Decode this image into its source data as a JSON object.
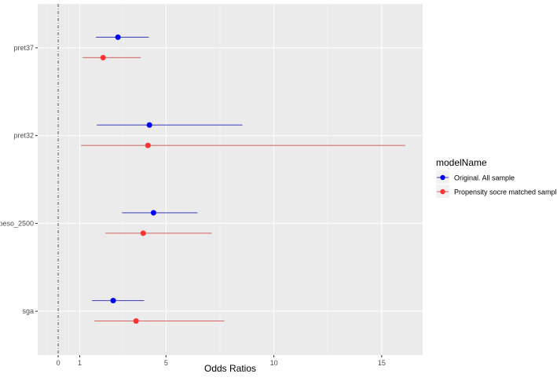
{
  "chart_data": {
    "type": "forest",
    "xlabel": "Odds Ratios",
    "ylabel": "",
    "xlim": [
      -0.95,
      16.9
    ],
    "x_ticks": [
      0,
      1,
      5,
      10,
      15
    ],
    "x_tick_labels": [
      "0",
      "1",
      "5",
      "10",
      "15"
    ],
    "x_minor_grid": [
      -0.5,
      0.5,
      3,
      7.5,
      12.5
    ],
    "reference_line": 0,
    "categories": [
      "pret37",
      "pret32",
      "peso_2500",
      "sga"
    ],
    "grid": true,
    "legend": {
      "title": "modelName",
      "position": "right"
    },
    "series": [
      {
        "name": "Original. All sample",
        "color": "#0000FF",
        "line_color": "#3A3AB0",
        "estimate": [
          2.77,
          4.23,
          4.42,
          2.55
        ],
        "ci_low": [
          1.75,
          1.79,
          2.96,
          1.57
        ],
        "ci_high": [
          4.2,
          8.54,
          6.46,
          3.98
        ]
      },
      {
        "name": "Propensity socre matched sample",
        "color": "#FF3333",
        "line_color": "#D06060",
        "estimate": [
          2.08,
          4.16,
          3.94,
          3.61
        ],
        "ci_low": [
          1.13,
          1.06,
          2.19,
          1.68
        ],
        "ci_high": [
          3.83,
          16.1,
          7.12,
          7.7
        ]
      }
    ]
  }
}
